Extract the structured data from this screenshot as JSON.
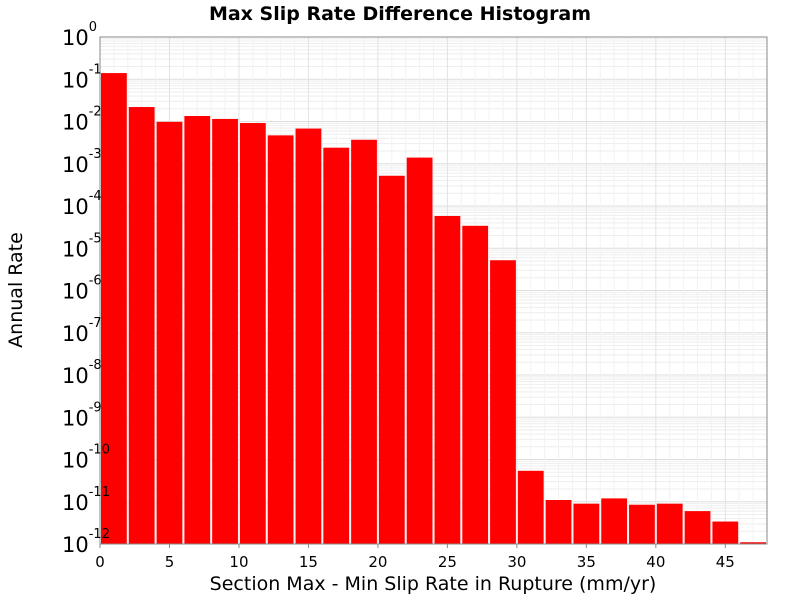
{
  "chart_data": {
    "type": "bar",
    "title": "Max Slip Rate Difference Histogram",
    "xlabel": "Section Max - Min Slip Rate in Rupture (mm/yr)",
    "ylabel": "Annual Rate",
    "x_ticks": [
      "0",
      "5",
      "10",
      "15",
      "20",
      "25",
      "30",
      "35",
      "40",
      "45"
    ],
    "y_ticks": [
      {
        "base": "10",
        "exp": "0"
      },
      {
        "base": "10",
        "exp": "-1"
      },
      {
        "base": "10",
        "exp": "-2"
      },
      {
        "base": "10",
        "exp": "-3"
      },
      {
        "base": "10",
        "exp": "-4"
      },
      {
        "base": "10",
        "exp": "-5"
      },
      {
        "base": "10",
        "exp": "-6"
      },
      {
        "base": "10",
        "exp": "-7"
      },
      {
        "base": "10",
        "exp": "-8"
      },
      {
        "base": "10",
        "exp": "-9"
      },
      {
        "base": "10",
        "exp": "-10"
      },
      {
        "base": "10",
        "exp": "-11"
      },
      {
        "base": "10",
        "exp": "-12"
      }
    ],
    "xlim": [
      0,
      48
    ],
    "ylim": [
      1e-12,
      1
    ],
    "y_scale": "log",
    "grid": true,
    "bar_width": 2,
    "bar_color": "#ff0000",
    "bins": [
      {
        "x": 1,
        "value": 0.14
      },
      {
        "x": 3,
        "value": 0.022
      },
      {
        "x": 5,
        "value": 0.0098
      },
      {
        "x": 7,
        "value": 0.0135
      },
      {
        "x": 9,
        "value": 0.0115
      },
      {
        "x": 11,
        "value": 0.0092
      },
      {
        "x": 13,
        "value": 0.0047
      },
      {
        "x": 15,
        "value": 0.0068
      },
      {
        "x": 17,
        "value": 0.0024
      },
      {
        "x": 19,
        "value": 0.0037
      },
      {
        "x": 21,
        "value": 0.00052
      },
      {
        "x": 23,
        "value": 0.0014
      },
      {
        "x": 25,
        "value": 5.8e-05
      },
      {
        "x": 27,
        "value": 3.4e-05
      },
      {
        "x": 29,
        "value": 5.2e-06
      },
      {
        "x": 31,
        "value": 5.4e-11
      },
      {
        "x": 33,
        "value": 1.1e-11
      },
      {
        "x": 35,
        "value": 9e-12
      },
      {
        "x": 37,
        "value": 1.2e-11
      },
      {
        "x": 39,
        "value": 8.5e-12
      },
      {
        "x": 41,
        "value": 9e-12
      },
      {
        "x": 43,
        "value": 6e-12
      },
      {
        "x": 45,
        "value": 3.4e-12
      },
      {
        "x": 47,
        "value": 1.1e-12
      }
    ]
  }
}
